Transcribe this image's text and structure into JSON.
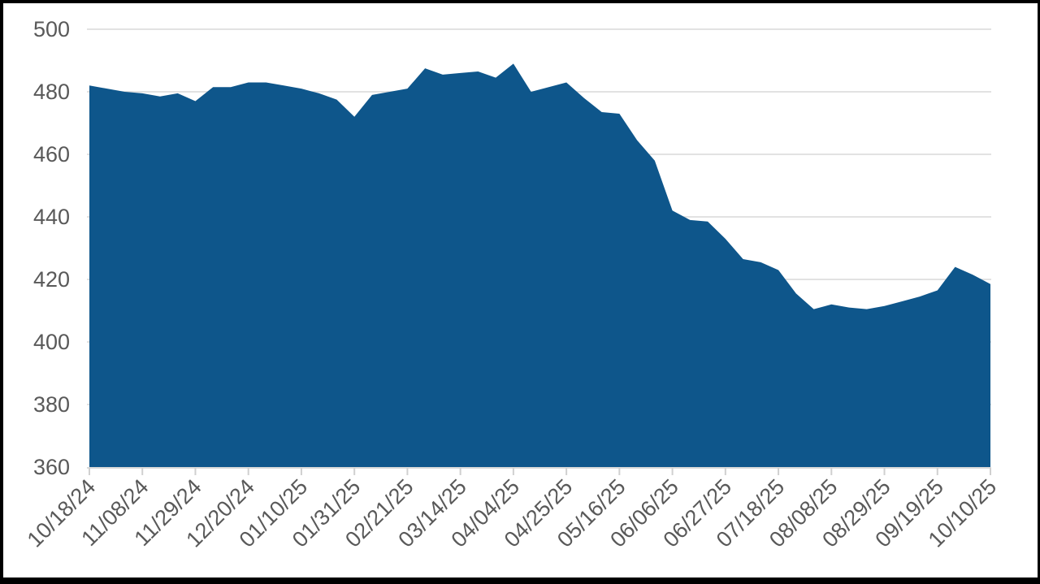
{
  "chart_data": {
    "type": "area",
    "title": "",
    "xlabel": "",
    "ylabel": "",
    "x": [
      "10/18/24",
      "10/25/24",
      "11/01/24",
      "11/08/24",
      "11/15/24",
      "11/22/24",
      "11/29/24",
      "12/06/24",
      "12/13/24",
      "12/20/24",
      "12/27/24",
      "01/03/25",
      "01/10/25",
      "01/17/25",
      "01/24/25",
      "01/31/25",
      "02/07/25",
      "02/14/25",
      "02/21/25",
      "02/28/25",
      "03/07/25",
      "03/14/25",
      "03/21/25",
      "03/28/25",
      "04/04/25",
      "04/11/25",
      "04/18/25",
      "04/25/25",
      "05/02/25",
      "05/09/25",
      "05/16/25",
      "05/23/25",
      "05/30/25",
      "06/06/25",
      "06/13/25",
      "06/20/25",
      "06/27/25",
      "07/04/25",
      "07/11/25",
      "07/18/25",
      "07/25/25",
      "08/01/25",
      "08/08/25",
      "08/15/25",
      "08/22/25",
      "08/29/25",
      "09/05/25",
      "09/12/25",
      "09/19/25",
      "09/26/25",
      "10/03/25",
      "10/10/25"
    ],
    "values": [
      482,
      481,
      480,
      479.5,
      478.5,
      479.5,
      477,
      481.5,
      481.5,
      483,
      483,
      482,
      481,
      479.5,
      477.5,
      472,
      479,
      480,
      481,
      487.5,
      485.5,
      486,
      486.5,
      484.5,
      489,
      480,
      481.5,
      483,
      478,
      473.5,
      473,
      464.5,
      458,
      442,
      439,
      438.5,
      433,
      426.5,
      425.5,
      423,
      415.5,
      410.5,
      412,
      411,
      410.5,
      411.5,
      413,
      414.5,
      416.5,
      424,
      421.5,
      418.5
    ],
    "x_label_every": 3,
    "visible_x_labels": [
      "10/18/24",
      "11/08/24",
      "11/29/24",
      "12/20/24",
      "01/10/25",
      "01/31/25",
      "02/21/25",
      "03/14/25",
      "04/04/25",
      "04/25/25",
      "05/16/25",
      "06/06/25",
      "06/27/25",
      "07/18/25",
      "08/08/25",
      "08/29/25",
      "09/19/25",
      "10/10/25"
    ],
    "ylim": [
      360,
      500
    ],
    "y_tick_step": 20,
    "y_tick_labels": [
      "360",
      "380",
      "400",
      "420",
      "440",
      "460",
      "480",
      "500"
    ],
    "grid": true,
    "legend_position": "none",
    "colors": {
      "area_fill": "#0e568b",
      "gridline": "#d9d9d9",
      "axis_line": "#d9d9d9",
      "tick_mark": "#d0d0d0",
      "tick_label": "#595959",
      "canvas_background": "#ffffff",
      "frame_background": "#000000"
    }
  }
}
